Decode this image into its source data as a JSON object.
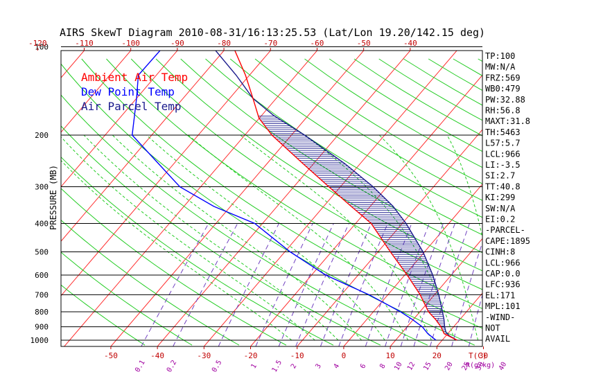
{
  "title": "AIRS SkewT Diagram 2010-08-31/16:13:25.53 (Lat/Lon 19.20/142.15 deg)",
  "chart_data": {
    "type": "line",
    "title": "AIRS SkewT Diagram 2010-08-31/16:13:25.53 (Lat/Lon 19.20/142.15 deg)",
    "ylabel": "PRESSURE (MB)",
    "xlabel": "T(C)",
    "mixing_ratio_unit": "R(g/kg)",
    "pressure_ticks": [
      100,
      200,
      300,
      400,
      500,
      600,
      700,
      800,
      900,
      1000
    ],
    "pressure_tick_labels": [
      "100",
      "200",
      "300",
      "400",
      "500",
      "600",
      "700",
      "800",
      "900",
      "1000"
    ],
    "top_temp_ticks": [
      -120,
      -110,
      -100,
      -90,
      -80,
      -70,
      -60,
      -50,
      -40
    ],
    "top_temp_labels": [
      "-120",
      "-110",
      "-100",
      "-90",
      "-80",
      "-70",
      "-60",
      "-50",
      "-40"
    ],
    "bottom_temp_ticks": [
      -50,
      -40,
      -30,
      -20,
      -10,
      0,
      10,
      20,
      30
    ],
    "bottom_temp_labels": [
      "-50",
      "-40",
      "-30",
      "-20",
      "-10",
      "0",
      "10",
      "20",
      "30"
    ],
    "mixing_ratios": [
      "0.1",
      "0.2",
      "0.5",
      "1",
      "1.5",
      "2",
      "3",
      "4",
      "6",
      "8",
      "10",
      "12",
      "15",
      "20",
      "25",
      "30",
      "40"
    ],
    "legend": [
      {
        "label": "Ambient Air Temp",
        "color": "#ff0000"
      },
      {
        "label": "Dew Point Temp",
        "color": "#0000ff"
      },
      {
        "label": "Air Parcel Temp",
        "color": "#1a1a8c"
      }
    ],
    "series": [
      {
        "name": "Ambient Air Temp",
        "color": "#ff0000",
        "points": [
          [
            1000,
            25.5
          ],
          [
            950,
            21.5
          ],
          [
            900,
            19.5
          ],
          [
            850,
            17.0
          ],
          [
            800,
            14.0
          ],
          [
            700,
            9.0
          ],
          [
            600,
            2.5
          ],
          [
            500,
            -5.5
          ],
          [
            400,
            -15.0
          ],
          [
            350,
            -22.5
          ],
          [
            300,
            -31.0
          ],
          [
            250,
            -41.0
          ],
          [
            200,
            -53.0
          ],
          [
            175,
            -59.0
          ],
          [
            150,
            -64.0
          ],
          [
            125,
            -70.0
          ],
          [
            100,
            -78.0
          ]
        ]
      },
      {
        "name": "Dew Point Temp",
        "color": "#0000ff",
        "points": [
          [
            1000,
            21.0
          ],
          [
            950,
            18.0
          ],
          [
            900,
            15.5
          ],
          [
            850,
            12.0
          ],
          [
            800,
            8.0
          ],
          [
            700,
            -2.0
          ],
          [
            600,
            -15.0
          ],
          [
            500,
            -27.0
          ],
          [
            400,
            -40.0
          ],
          [
            350,
            -52.0
          ],
          [
            300,
            -63.0
          ],
          [
            250,
            -72.0
          ],
          [
            200,
            -83.0
          ],
          [
            150,
            -89.0
          ],
          [
            125,
            -93.0
          ],
          [
            100,
            -93.0
          ]
        ]
      },
      {
        "name": "Air Parcel Temp",
        "color": "#1a1a8c",
        "points": [
          [
            1000,
            25.5
          ],
          [
            966,
            23.0
          ],
          [
            936,
            21.5
          ],
          [
            900,
            20.3
          ],
          [
            850,
            18.8
          ],
          [
            800,
            17.0
          ],
          [
            700,
            13.0
          ],
          [
            600,
            8.0
          ],
          [
            500,
            1.5
          ],
          [
            400,
            -7.5
          ],
          [
            350,
            -13.5
          ],
          [
            300,
            -21.5
          ],
          [
            250,
            -32.0
          ],
          [
            200,
            -46.0
          ],
          [
            171,
            -56.5
          ],
          [
            150,
            -64.0
          ],
          [
            125,
            -72.0
          ],
          [
            101,
            -82.0
          ]
        ]
      }
    ],
    "indices": [
      "TP:100",
      "MW:N/A",
      "FRZ:569",
      "WB0:479",
      "PW:32.88",
      "RH:56.8",
      "MAXT:31.8",
      "TH:5463",
      "L57:5.7",
      "LCL:966",
      "LI:-3.5",
      "SI:2.7",
      "TT:40.8",
      "KI:299",
      "SW:N/A",
      "EI:0.2",
      "-PARCEL-",
      "CAPE:1895",
      "CINH:8",
      "LCL:966",
      "CAP:0.0",
      "LFC:936",
      "EL:171",
      "MPL:101",
      "-WIND-",
      "NOT",
      "AVAIL"
    ]
  }
}
